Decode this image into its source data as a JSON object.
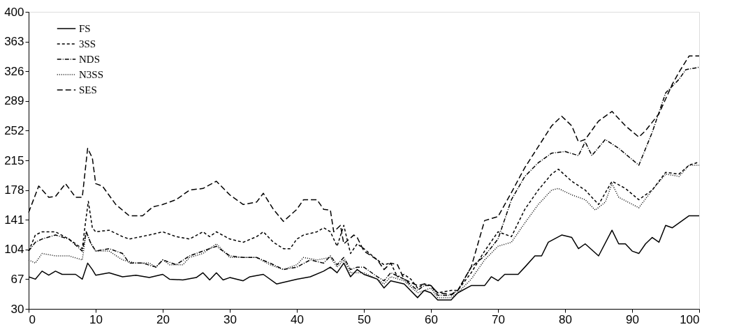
{
  "chart_data": {
    "type": "line",
    "xlim": [
      0,
      100
    ],
    "ylim": [
      30,
      400
    ],
    "xticks": [
      0,
      10,
      20,
      30,
      40,
      50,
      60,
      70,
      80,
      90,
      100
    ],
    "yticks": [
      30,
      67,
      104,
      141,
      178,
      215,
      252,
      289,
      326,
      363,
      400
    ],
    "grid": false,
    "legend": "top left",
    "marker": "none",
    "series": [
      {
        "name": "FS",
        "color": "#000000",
        "line_style": "solid",
        "x": [
          0,
          1,
          2,
          3,
          4,
          5,
          7,
          8,
          8.8,
          9.5,
          10,
          12,
          14,
          16,
          18,
          20,
          21,
          23,
          25,
          26,
          27,
          28,
          29,
          30,
          32,
          33,
          35,
          37,
          40,
          42,
          44,
          45,
          46,
          47,
          48,
          49,
          50,
          52,
          53,
          54,
          56,
          58,
          59,
          60,
          61,
          63,
          64,
          66,
          68,
          69,
          70,
          71,
          73,
          74,
          75.5,
          76.5,
          77.5,
          79.5,
          81,
          82,
          83,
          85,
          87,
          88,
          89,
          90,
          91,
          92,
          93,
          94,
          95,
          96,
          98.5,
          100
        ],
        "values": [
          70,
          67,
          77,
          72,
          77,
          73,
          73,
          67,
          87,
          79,
          72,
          75,
          70,
          72,
          69,
          73,
          67,
          66,
          69,
          75,
          66,
          75,
          66,
          69,
          65,
          70,
          73,
          61,
          67,
          70,
          77,
          82,
          75,
          87,
          70,
          79,
          73,
          67,
          56,
          65,
          61,
          44,
          53,
          50,
          41,
          41,
          50,
          59,
          59,
          70,
          65,
          73,
          73,
          82,
          96,
          96,
          113,
          122,
          119,
          105,
          111,
          96,
          128,
          111,
          111,
          102,
          99,
          111,
          119,
          113,
          134,
          131,
          146,
          146
        ]
      },
      {
        "name": "3SS",
        "color": "#000000",
        "line_style": "dashed",
        "x": [
          0,
          1,
          2,
          4,
          6,
          8,
          8.5,
          8.9,
          9.5,
          10,
          12,
          14,
          15,
          18,
          20,
          22,
          24,
          26,
          27,
          28,
          30,
          32,
          34,
          35,
          36.5,
          38,
          39,
          40,
          41,
          43,
          44,
          45,
          46,
          47,
          48,
          49,
          50,
          52,
          53,
          54,
          55,
          56,
          57,
          58,
          59,
          60,
          61,
          63,
          64,
          66,
          68,
          70,
          72,
          74,
          76,
          78,
          79,
          81,
          83,
          85,
          87,
          89,
          91,
          93,
          95,
          97,
          98.5,
          100
        ],
        "values": [
          102,
          122,
          126,
          126,
          117,
          105,
          139,
          164,
          131,
          126,
          128,
          120,
          117,
          122,
          126,
          120,
          117,
          126,
          120,
          126,
          117,
          113,
          120,
          126,
          113,
          105,
          105,
          117,
          122,
          126,
          131,
          126,
          108,
          134,
          99,
          111,
          105,
          91,
          85,
          87,
          70,
          73,
          67,
          56,
          61,
          59,
          50,
          53,
          53,
          75,
          102,
          126,
          120,
          154,
          178,
          198,
          204,
          189,
          178,
          160,
          189,
          180,
          166,
          178,
          200,
          198,
          209,
          213
        ]
      },
      {
        "name": "NDS",
        "color": "#000000",
        "line_style": "dashdot",
        "x": [
          0,
          1,
          2,
          4,
          6,
          8,
          8.6,
          9.2,
          10,
          12,
          14,
          15,
          17,
          19,
          20,
          22,
          24,
          26,
          28,
          30,
          32,
          34,
          36,
          38,
          40,
          42,
          44,
          45,
          46,
          47,
          48,
          49,
          50,
          52,
          53,
          54,
          56,
          58,
          59,
          60,
          61,
          63,
          64,
          66,
          68,
          70,
          72,
          74,
          76,
          78,
          80,
          82,
          83,
          84,
          86,
          88,
          91,
          93,
          95,
          97,
          98,
          100
        ],
        "values": [
          102,
          113,
          117,
          122,
          117,
          102,
          126,
          113,
          102,
          105,
          99,
          87,
          87,
          82,
          91,
          85,
          96,
          102,
          108,
          96,
          94,
          94,
          87,
          79,
          82,
          91,
          87,
          96,
          85,
          94,
          79,
          82,
          82,
          70,
          65,
          75,
          67,
          53,
          59,
          59,
          47,
          47,
          53,
          82,
          96,
          117,
          166,
          195,
          212,
          224,
          226,
          221,
          238,
          221,
          241,
          230,
          209,
          250,
          299,
          316,
          328,
          331
        ]
      },
      {
        "name": "N3SS",
        "color": "#000000",
        "line_style": "dotted",
        "x": [
          0,
          1,
          2,
          4,
          6,
          8,
          8.6,
          9.3,
          10,
          12,
          14,
          16,
          18,
          19,
          20,
          21,
          23,
          24,
          26,
          28,
          30,
          32,
          34,
          36,
          38,
          40,
          41,
          43,
          45,
          46,
          47,
          48,
          50,
          52,
          53,
          54,
          56,
          58,
          60,
          61,
          63,
          64,
          66,
          68,
          70,
          72,
          74,
          76,
          78,
          79,
          81,
          83,
          84.5,
          86,
          87,
          88,
          91,
          93,
          95,
          97,
          98.5,
          100
        ],
        "values": [
          91,
          87,
          99,
          96,
          96,
          91,
          126,
          111,
          102,
          102,
          91,
          87,
          87,
          82,
          91,
          85,
          85,
          94,
          99,
          111,
          94,
          94,
          94,
          85,
          79,
          85,
          94,
          91,
          94,
          82,
          91,
          75,
          75,
          67,
          61,
          70,
          65,
          50,
          56,
          44,
          44,
          50,
          67,
          91,
          108,
          113,
          137,
          160,
          178,
          180,
          172,
          166,
          153,
          163,
          186,
          169,
          156,
          178,
          198,
          195,
          209,
          209
        ]
      },
      {
        "name": "SES",
        "color": "#000000",
        "line_style": "longdash",
        "x": [
          0,
          1.5,
          3,
          4,
          5.5,
          7,
          8,
          8.8,
          9.5,
          10,
          11,
          13,
          15,
          17,
          18.5,
          20,
          22,
          24,
          26,
          28,
          30,
          32,
          34,
          35,
          36.5,
          38,
          40,
          41,
          43,
          44,
          45,
          45.5,
          46.5,
          47,
          48.5,
          49,
          50,
          52,
          53,
          54,
          55,
          56,
          58,
          59,
          60,
          61,
          63,
          64,
          66,
          68,
          70,
          72,
          74,
          76,
          78,
          79.5,
          81,
          82,
          83,
          85,
          87,
          89,
          91,
          92,
          94,
          96,
          97,
          98.5,
          100
        ],
        "values": [
          150,
          183,
          169,
          170,
          186,
          169,
          169,
          230,
          218,
          186,
          183,
          160,
          146,
          146,
          157,
          160,
          166,
          178,
          180,
          189,
          172,
          160,
          163,
          174,
          154,
          139,
          154,
          166,
          166,
          154,
          153,
          126,
          134,
          111,
          122,
          119,
          102,
          91,
          79,
          87,
          85,
          67,
          59,
          61,
          59,
          50,
          48,
          53,
          82,
          140,
          145,
          175,
          206,
          232,
          258,
          270,
          258,
          238,
          241,
          264,
          276,
          258,
          244,
          252,
          273,
          310,
          325,
          345,
          345
        ]
      }
    ]
  }
}
